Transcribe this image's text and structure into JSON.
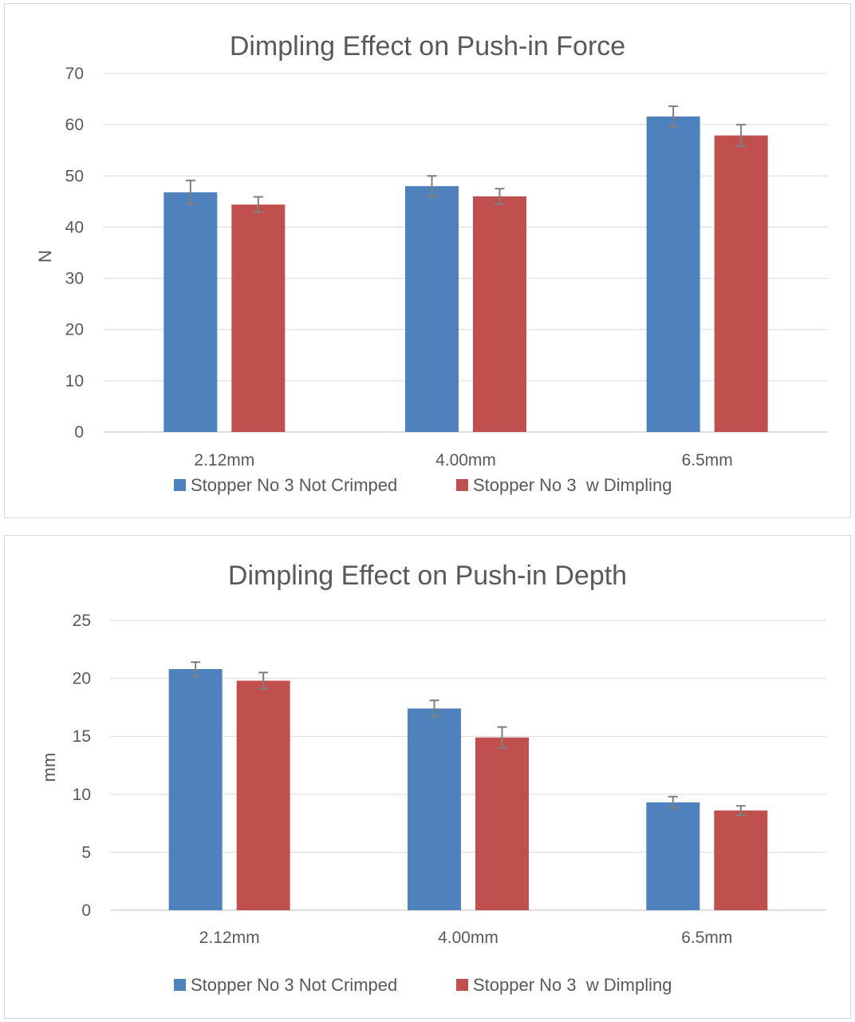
{
  "chart_data": [
    {
      "type": "bar",
      "title": "Dimpling Effect on Push-in Force",
      "xlabel": "",
      "ylabel": "N",
      "ylim": [
        0,
        70
      ],
      "yticks": [
        0,
        10,
        20,
        30,
        40,
        50,
        60,
        70
      ],
      "grid": true,
      "legend_position": "bottom",
      "categories": [
        "2.12mm",
        "4.00mm",
        "6.5mm"
      ],
      "series": [
        {
          "name": "Stopper No 3 Not Crimped",
          "color": "#4f81bd",
          "values": [
            46.8,
            48.0,
            61.6
          ],
          "errors": [
            2.3,
            2.0,
            2.0
          ]
        },
        {
          "name": "Stopper No 3  w Dimpling",
          "color": "#c0504d",
          "values": [
            44.4,
            46.0,
            57.9
          ],
          "errors": [
            1.5,
            1.5,
            2.1
          ]
        }
      ]
    },
    {
      "type": "bar",
      "title": "Dimpling Effect on Push-in Depth",
      "xlabel": "",
      "ylabel": "mm",
      "ylim": [
        0,
        25
      ],
      "yticks": [
        0,
        5,
        10,
        15,
        20,
        25
      ],
      "grid": true,
      "legend_position": "bottom",
      "categories": [
        "2.12mm",
        "4.00mm",
        "6.5mm"
      ],
      "series": [
        {
          "name": "Stopper No 3 Not Crimped",
          "color": "#4f81bd",
          "values": [
            20.8,
            17.4,
            9.3
          ],
          "errors": [
            0.6,
            0.7,
            0.5
          ]
        },
        {
          "name": "Stopper No 3  w Dimpling",
          "color": "#c0504d",
          "values": [
            19.8,
            14.9,
            8.6
          ],
          "errors": [
            0.7,
            0.9,
            0.4
          ]
        }
      ]
    }
  ]
}
